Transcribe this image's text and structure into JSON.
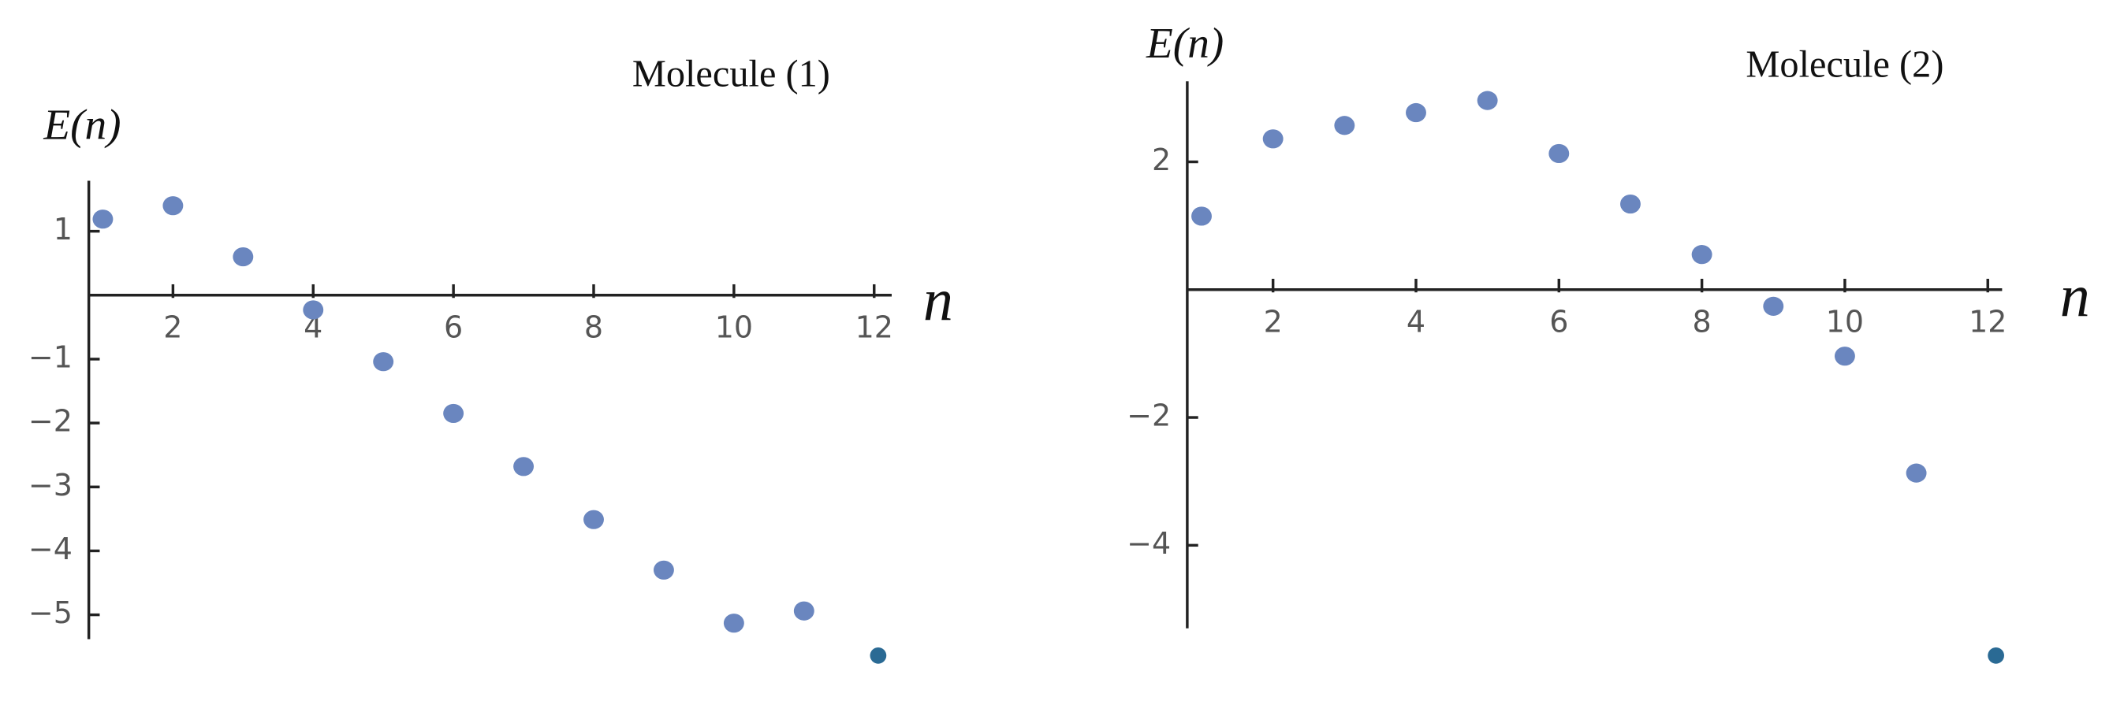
{
  "chart_data": [
    {
      "type": "scatter",
      "title": "Molecule (1)",
      "x_label": "n",
      "y_label": "E(n)",
      "x": [
        1,
        2,
        3,
        4,
        5,
        6,
        7,
        8,
        9,
        10,
        11
      ],
      "values": [
        1.19,
        1.4,
        0.6,
        -0.23,
        -1.04,
        -1.85,
        -2.68,
        -3.51,
        -4.3,
        -5.13,
        -4.94
      ],
      "color": "#6a86bf",
      "xlim": [
        0.8,
        12.25
      ],
      "ylim": [
        -5.38,
        1.79
      ],
      "xticks": [
        2,
        4,
        6,
        8,
        10,
        12
      ],
      "yticks": [
        1,
        {
          "value": -1,
          "label": "−1"
        },
        {
          "value": -2,
          "label": "−2"
        },
        {
          "value": -3,
          "label": "−3"
        },
        {
          "value": -4,
          "label": "−4"
        },
        {
          "value": -5,
          "label": "−5"
        }
      ]
    },
    {
      "type": "scatter",
      "title": "Molecule (2)",
      "x_label": "n",
      "y_label": "E(n)",
      "x": [
        1,
        2,
        3,
        4,
        5,
        6,
        7,
        8,
        9,
        10,
        11
      ],
      "values": [
        1.15,
        2.36,
        2.57,
        2.77,
        2.96,
        2.13,
        1.34,
        0.55,
        -0.26,
        -1.04,
        -2.87
      ],
      "color": "#6a86bf",
      "xlim": [
        0.8,
        12.2
      ],
      "ylim": [
        -5.3,
        3.26
      ],
      "xticks": [
        2,
        4,
        6,
        8,
        10,
        12
      ],
      "yticks": [
        2,
        {
          "value": -2,
          "label": "−2"
        },
        {
          "value": -4,
          "label": "−4"
        }
      ]
    }
  ]
}
